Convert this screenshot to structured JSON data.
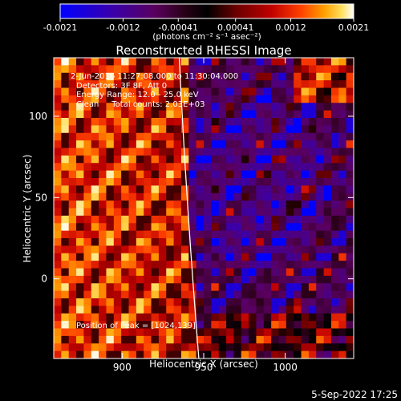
{
  "chart_data": {
    "type": "heatmap",
    "title": "Reconstructed RHESSI Image",
    "xlabel": "Heliocentric X (arcsec)",
    "ylabel": "Heliocentric Y (arcsec)",
    "xlim": [
      858,
      1042
    ],
    "ylim": [
      -49,
      136
    ],
    "x_ticks": [
      "900",
      "950",
      "1000"
    ],
    "x_tick_values": [
      900,
      950,
      1000
    ],
    "y_ticks": [
      "0",
      "50",
      "100"
    ],
    "y_tick_values": [
      0,
      50,
      100
    ],
    "colorbar": {
      "ticks": [
        "-0.0021",
        "-0.0012",
        "-0.00041",
        "0.00041",
        "0.0012",
        "0.0021"
      ],
      "tick_values": [
        -0.0021,
        -0.0012,
        -0.00041,
        0.00041,
        0.0012,
        0.0021
      ],
      "unit_label": "(photons cm⁻² s⁻¹ asec⁻²)",
      "colors": [
        "#0000ff",
        "#3a00aa",
        "#5a0060",
        "#2a0018",
        "#000000",
        "#6a0000",
        "#c00000",
        "#ff4000",
        "#ffa000",
        "#ffe060",
        "#ffffff"
      ]
    },
    "annotations": [
      "2-Jun-2016 11:27:08.000 to 11:30:04.000",
      "Detectors: 3F 8F, Att 0",
      "Energy Range: 12.0 - 25.0 keV",
      "Clean     Total counts: 2.03E+03"
    ],
    "peak_label": "Position of Peak = [1024,139]",
    "limb_line": {
      "x_top": 935,
      "x_bottom": 947
    },
    "grid": false
  },
  "footer": {
    "date": "5-Sep-2022 17:25"
  }
}
